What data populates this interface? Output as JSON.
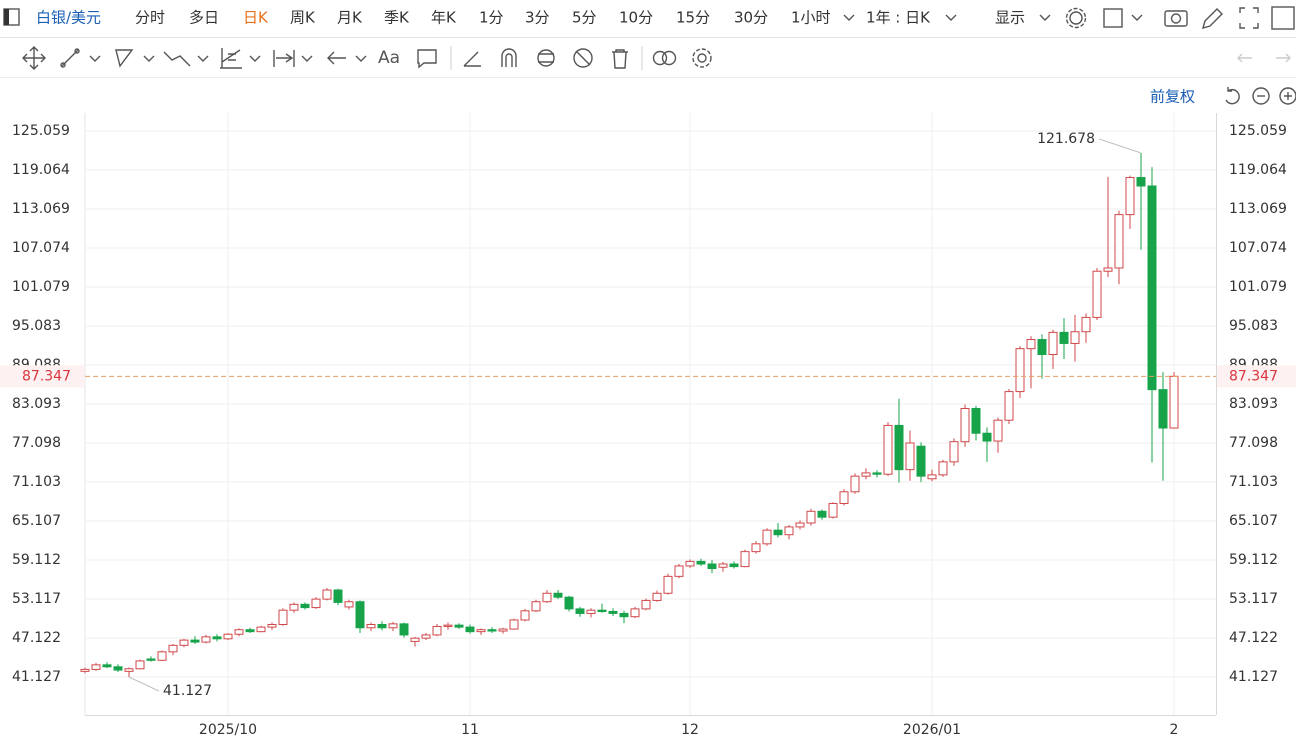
{
  "toolbar": {
    "symbol": "白银/美元",
    "periods": [
      "分时",
      "多日",
      "日K",
      "周K",
      "月K",
      "季K",
      "年K",
      "1分",
      "3分",
      "5分",
      "10分",
      "15分",
      "30分",
      "1小时"
    ],
    "selected_period": 2,
    "range": "1年 : 日K",
    "display": "显示"
  },
  "drawing_toolbar": {
    "text_tool": "Aa"
  },
  "adjust": "前复权",
  "chart_data": {
    "type": "candlestick",
    "categories": [
      null,
      null,
      null,
      null,
      null,
      null,
      null,
      null,
      null,
      null,
      null,
      null,
      null,
      "2025/10",
      null,
      null,
      null,
      null,
      null,
      null,
      null,
      null,
      null,
      null,
      null,
      null,
      null,
      null,
      null,
      null,
      null,
      null,
      null,
      null,
      null,
      "11",
      null,
      null,
      null,
      null,
      null,
      null,
      null,
      null,
      null,
      null,
      null,
      null,
      null,
      null,
      null,
      null,
      null,
      null,
      null,
      "12",
      null,
      null,
      null,
      null,
      null,
      null,
      null,
      null,
      null,
      null,
      null,
      null,
      null,
      null,
      null,
      null,
      null,
      null,
      null,
      null,
      null,
      "2026/01",
      null,
      null,
      null,
      null,
      null,
      null,
      null,
      null,
      null,
      null,
      null,
      null,
      null,
      null,
      null,
      null,
      null,
      null,
      null,
      null,
      null,
      "2"
    ],
    "open": [
      42.0,
      42.3,
      43.0,
      42.7,
      42.0,
      42.4,
      43.9,
      43.7,
      45.0,
      46.0,
      46.8,
      46.5,
      47.3,
      47.0,
      47.7,
      48.4,
      48.1,
      48.8,
      49.2,
      51.4,
      52.3,
      51.8,
      53.1,
      54.5,
      51.9,
      52.7,
      48.7,
      49.2,
      48.7,
      49.3,
      46.6,
      47.1,
      47.6,
      48.9,
      49.1,
      48.8,
      48.1,
      48.4,
      48.2,
      48.5,
      49.9,
      51.3,
      52.7,
      54.0,
      53.4,
      51.6,
      50.9,
      51.4,
      51.2,
      50.9,
      50.4,
      51.6,
      52.9,
      54.0,
      56.6,
      58.2,
      58.9,
      58.5,
      58.0,
      58.5,
      58.1,
      60.4,
      61.6,
      63.7,
      63.0,
      64.2,
      64.8,
      66.6,
      65.7,
      67.8,
      69.6,
      72.0,
      72.5,
      72.3,
      79.8,
      73.0,
      76.6,
      71.6,
      72.2,
      74.2,
      77.3,
      82.4,
      78.6,
      77.4,
      80.6,
      85.0,
      91.6,
      93.0,
      90.7,
      94.1,
      92.4,
      94.2,
      96.4,
      103.5,
      104.0,
      112.2,
      117.9,
      116.6,
      85.3,
      79.4
    ],
    "high": [
      42.6,
      43.3,
      43.4,
      43.1,
      42.6,
      43.8,
      44.3,
      45.2,
      46.2,
      47.0,
      47.4,
      47.6,
      47.7,
      47.9,
      48.6,
      48.7,
      49.0,
      49.5,
      51.7,
      52.6,
      52.6,
      53.4,
      54.8,
      54.7,
      53.0,
      52.9,
      49.5,
      49.7,
      49.6,
      49.5,
      47.3,
      47.9,
      49.3,
      49.5,
      49.4,
      49.2,
      48.6,
      48.8,
      48.7,
      50.1,
      51.6,
      53.0,
      54.5,
      54.5,
      53.6,
      51.9,
      51.7,
      52.4,
      51.7,
      51.3,
      51.9,
      53.2,
      54.4,
      57.0,
      58.5,
      59.2,
      59.3,
      59.1,
      58.8,
      58.9,
      60.7,
      62.0,
      64.0,
      64.8,
      64.5,
      65.2,
      67.0,
      66.9,
      68.0,
      70.0,
      72.4,
      73.2,
      72.9,
      80.3,
      83.9,
      79.0,
      77.2,
      73.0,
      74.5,
      77.8,
      83.0,
      82.8,
      79.5,
      81.0,
      85.4,
      92.0,
      93.5,
      93.8,
      94.5,
      96.3,
      96.8,
      97.0,
      104.0,
      118.0,
      112.8,
      118.2,
      121.678,
      119.5,
      88.0,
      88.0
    ],
    "low": [
      41.7,
      42.1,
      42.5,
      41.9,
      41.127,
      42.3,
      43.5,
      43.6,
      44.5,
      45.7,
      46.2,
      46.3,
      46.6,
      46.8,
      47.4,
      47.9,
      48.0,
      48.4,
      49.0,
      51.0,
      51.5,
      51.6,
      52.9,
      52.2,
      51.5,
      47.9,
      48.2,
      48.3,
      48.2,
      47.2,
      45.8,
      46.8,
      47.4,
      48.4,
      48.5,
      47.8,
      47.6,
      47.9,
      47.8,
      48.4,
      49.7,
      51.1,
      52.5,
      53.1,
      51.2,
      50.4,
      50.3,
      51.0,
      50.5,
      49.4,
      50.2,
      51.4,
      52.7,
      53.8,
      56.3,
      57.9,
      58.2,
      57.1,
      57.3,
      57.8,
      58.0,
      60.1,
      61.3,
      62.6,
      62.3,
      63.8,
      64.4,
      65.3,
      65.5,
      67.5,
      69.3,
      71.5,
      71.8,
      72.0,
      71.0,
      71.3,
      71.1,
      71.2,
      71.9,
      73.6,
      76.5,
      77.5,
      74.2,
      75.6,
      80.0,
      84.0,
      85.5,
      87.0,
      88.5,
      90.0,
      89.6,
      92.5,
      96.0,
      102.6,
      101.5,
      110.0,
      106.8,
      74.1,
      71.3,
      79.3
    ],
    "close": [
      42.3,
      43.0,
      42.7,
      42.2,
      42.4,
      43.6,
      43.7,
      45.0,
      46.0,
      46.8,
      46.5,
      47.3,
      47.0,
      47.7,
      48.4,
      48.1,
      48.8,
      49.2,
      51.4,
      52.3,
      51.8,
      53.1,
      54.5,
      52.6,
      52.7,
      48.7,
      49.2,
      48.7,
      49.3,
      47.6,
      47.1,
      47.6,
      48.9,
      49.1,
      48.8,
      48.1,
      48.4,
      48.2,
      48.5,
      49.9,
      51.3,
      52.7,
      54.0,
      53.4,
      51.6,
      50.9,
      51.4,
      51.2,
      50.9,
      50.4,
      51.6,
      52.9,
      54.0,
      56.6,
      58.2,
      58.9,
      58.5,
      57.8,
      58.5,
      58.1,
      60.4,
      61.6,
      63.7,
      63.0,
      64.2,
      64.8,
      66.6,
      65.7,
      67.8,
      69.6,
      72.0,
      72.5,
      72.3,
      79.8,
      73.0,
      77.1,
      72.0,
      72.2,
      74.2,
      77.3,
      82.4,
      78.6,
      77.4,
      80.6,
      85.0,
      91.6,
      93.0,
      90.7,
      94.1,
      92.4,
      94.2,
      96.4,
      103.5,
      104.0,
      112.2,
      117.9,
      116.6,
      85.3,
      79.4,
      87.347
    ],
    "up_color": "#d0474a",
    "down_color": "#16a34a",
    "ylim": [
      35.29,
      127.82
    ],
    "yticks": [
      41.127,
      47.122,
      53.117,
      59.112,
      65.107,
      71.103,
      77.098,
      83.093,
      89.088,
      95.083,
      101.079,
      107.074,
      113.069,
      119.064,
      125.059
    ],
    "grid": true,
    "last_price": 87.347,
    "annotations": [
      121.678,
      41.127
    ]
  }
}
